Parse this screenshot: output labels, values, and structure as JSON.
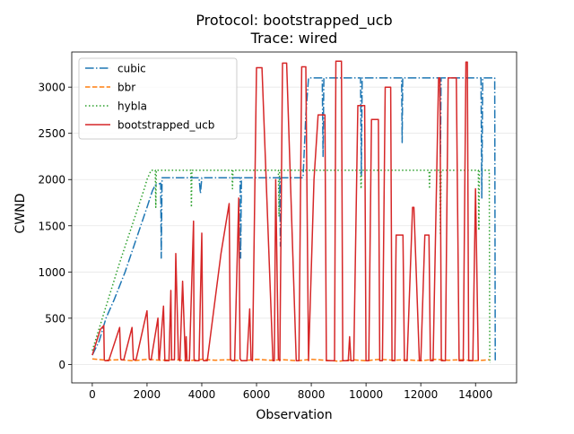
{
  "chart_data": {
    "type": "line",
    "title": "Protocol: bootstrapped_ucb",
    "subtitle": "Trace: wired",
    "xlabel": "Observation",
    "ylabel": "CWND",
    "xlim": [
      -750,
      15500
    ],
    "ylim": [
      -200,
      3380
    ],
    "xticks": [
      0,
      2000,
      4000,
      6000,
      8000,
      10000,
      12000,
      14000
    ],
    "xtick_labels": [
      "0",
      "2000",
      "4000",
      "6000",
      "8000",
      "10000",
      "12000",
      "14000"
    ],
    "yticks": [
      0,
      500,
      1000,
      1500,
      2000,
      2500,
      3000
    ],
    "ytick_labels": [
      "0",
      "500",
      "1000",
      "1500",
      "2000",
      "2500",
      "3000"
    ],
    "grid": true,
    "legend_position": "top-left",
    "series": [
      {
        "name": "cubic",
        "color": "#1f77b4",
        "dash": "dashdot",
        "x": [
          0,
          250,
          500,
          800,
          1200,
          1600,
          2000,
          2200,
          2300,
          2500,
          2520,
          2550,
          2600,
          3000,
          3500,
          3900,
          3950,
          4000,
          4100,
          4500,
          5000,
          5400,
          5420,
          5450,
          5500,
          6000,
          6500,
          6850,
          6870,
          6900,
          7000,
          7500,
          7700,
          7800,
          7900,
          8000,
          8300,
          8400,
          8430,
          8460,
          8600,
          9000,
          9500,
          9800,
          9830,
          9860,
          10000,
          10500,
          11000,
          11300,
          11320,
          11340,
          11500,
          12000,
          12600,
          12700,
          12720,
          12740,
          12900,
          13500,
          14000,
          14200,
          14230,
          14260,
          14400,
          14700,
          14720,
          14740
        ],
        "y": [
          100,
          250,
          500,
          700,
          1000,
          1350,
          1700,
          1880,
          1940,
          1960,
          1150,
          2020,
          2020,
          2020,
          2020,
          2020,
          1850,
          2020,
          2020,
          2020,
          2020,
          2020,
          1150,
          2020,
          2020,
          2020,
          2020,
          2020,
          1280,
          2020,
          2020,
          2020,
          2020,
          2700,
          3100,
          3100,
          3100,
          3100,
          2250,
          3100,
          3100,
          3100,
          3100,
          3100,
          2050,
          3100,
          3100,
          3100,
          3100,
          3100,
          2400,
          3100,
          3100,
          3100,
          3100,
          3100,
          2250,
          3100,
          3100,
          3100,
          3100,
          3100,
          1800,
          3100,
          3100,
          3100,
          50,
          50
        ]
      },
      {
        "name": "bbr",
        "color": "#ff7f0e",
        "dash": "dashed",
        "x": [
          0,
          500,
          1000,
          1500,
          2000,
          2500,
          3000,
          3500,
          4000,
          4500,
          5000,
          5500,
          6000,
          6500,
          7000,
          7500,
          8000,
          8500,
          9000,
          9500,
          10000,
          10500,
          11000,
          11500,
          12000,
          12500,
          13000,
          13500,
          14000,
          14500
        ],
        "y": [
          60,
          45,
          50,
          40,
          55,
          45,
          50,
          40,
          55,
          45,
          50,
          40,
          55,
          45,
          50,
          40,
          55,
          45,
          35,
          50,
          40,
          55,
          45,
          50,
          40,
          55,
          45,
          50,
          40,
          50
        ]
      },
      {
        "name": "hybla",
        "color": "#2ca02c",
        "dash": "dotted",
        "x": [
          0,
          1000,
          1900,
          2000,
          2150,
          2300,
          2320,
          2340,
          3000,
          3600,
          3620,
          3640,
          4500,
          5100,
          5120,
          5140,
          6000,
          6800,
          6820,
          6840,
          8000,
          9800,
          9820,
          9840,
          11000,
          12300,
          12320,
          12340,
          12700,
          12720,
          12740,
          13200,
          14100,
          14120,
          14140,
          14400,
          14500,
          14520,
          14540
        ],
        "y": [
          150,
          1100,
          1900,
          2000,
          2100,
          2100,
          1700,
          2100,
          2100,
          2100,
          1700,
          2100,
          2100,
          2100,
          1900,
          2100,
          2100,
          2100,
          1600,
          2100,
          2100,
          2100,
          1900,
          2100,
          2100,
          2100,
          1900,
          2100,
          2100,
          1400,
          2100,
          2100,
          2100,
          1450,
          2100,
          2100,
          2100,
          20,
          20
        ]
      },
      {
        "name": "bootstrapped_ucb",
        "color": "#d62728",
        "dash": "solid",
        "x": [
          0,
          50,
          300,
          420,
          440,
          470,
          600,
          1000,
          1040,
          1070,
          1150,
          1450,
          1500,
          1600,
          2000,
          2080,
          2120,
          2150,
          2400,
          2430,
          2450,
          2600,
          2650,
          2800,
          2870,
          2900,
          3000,
          3050,
          3150,
          3200,
          3300,
          3400,
          3430,
          3460,
          3550,
          3700,
          3720,
          3740,
          3900,
          4000,
          4040,
          4070,
          4150,
          4200,
          4700,
          5000,
          5050,
          5100,
          5200,
          5350,
          5400,
          5450,
          5650,
          5750,
          5800,
          5850,
          6000,
          6200,
          6600,
          6650,
          6700,
          6800,
          6850,
          6950,
          7100,
          7450,
          7550,
          7650,
          7800,
          7900,
          8100,
          8250,
          8300,
          8350,
          8500,
          8550,
          8850,
          8900,
          9100,
          9150,
          9350,
          9400,
          9450,
          9550,
          9700,
          9950,
          10000,
          10100,
          10200,
          10450,
          10500,
          10600,
          10700,
          10900,
          10950,
          11050,
          11100,
          11350,
          11400,
          11500,
          11700,
          11750,
          11950,
          12000,
          12150,
          12300,
          12350,
          12450,
          12650,
          12700,
          12750,
          12900,
          13000,
          13300,
          13400,
          13550,
          13650,
          13700,
          13750,
          13900,
          14000,
          14100
        ],
        "y": [
          100,
          150,
          380,
          420,
          50,
          40,
          40,
          400,
          60,
          50,
          50,
          400,
          50,
          50,
          580,
          60,
          50,
          50,
          500,
          60,
          50,
          630,
          40,
          40,
          800,
          50,
          50,
          1200,
          60,
          40,
          900,
          40,
          300,
          40,
          40,
          1550,
          60,
          40,
          40,
          1420,
          60,
          40,
          40,
          40,
          1200,
          1740,
          60,
          40,
          40,
          1800,
          60,
          40,
          40,
          600,
          50,
          40,
          3210,
          3210,
          40,
          40,
          2000,
          60,
          40,
          3260,
          3260,
          40,
          40,
          3220,
          3220,
          40,
          2000,
          2700,
          2700,
          2700,
          2700,
          40,
          40,
          3280,
          3280,
          40,
          40,
          300,
          40,
          40,
          2800,
          2800,
          40,
          40,
          2650,
          2650,
          40,
          40,
          3000,
          3000,
          40,
          40,
          1400,
          1400,
          40,
          40,
          1700,
          1700,
          40,
          40,
          1400,
          1400,
          40,
          40,
          3100,
          3100,
          40,
          40,
          3100,
          3100,
          40,
          40,
          3270,
          3270,
          40,
          40,
          1900,
          40
        ]
      }
    ]
  }
}
